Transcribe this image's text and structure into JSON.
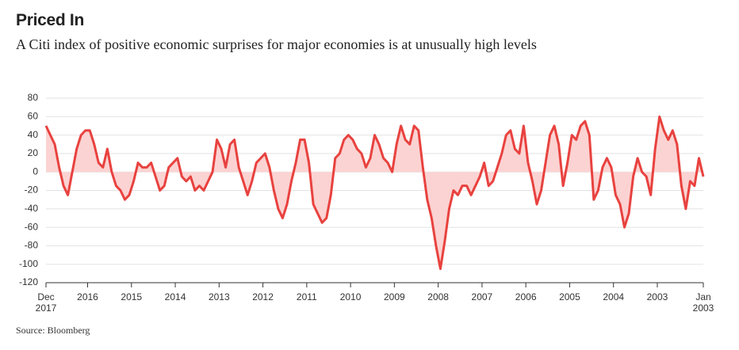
{
  "chart_data": {
    "type": "line",
    "title": "Priced In",
    "subtitle": "A Citi index of positive economic surprises for major economies is at unusually high levels",
    "source": "Source: Bloomberg",
    "color": "#e8423f",
    "area_color": "#fbd3d2",
    "x": [
      0,
      0.1,
      0.2,
      0.3,
      0.4,
      0.5,
      0.6,
      0.7,
      0.8,
      0.9,
      1,
      1.1,
      1.2,
      1.3,
      1.4,
      1.5,
      1.6,
      1.7,
      1.8,
      1.9,
      2,
      2.1,
      2.2,
      2.3,
      2.4,
      2.5,
      2.6,
      2.7,
      2.8,
      2.9,
      3,
      3.1,
      3.2,
      3.3,
      3.4,
      3.5,
      3.6,
      3.7,
      3.8,
      3.9,
      4,
      4.1,
      4.2,
      4.3,
      4.4,
      4.5,
      4.6,
      4.7,
      4.8,
      4.9,
      5,
      5.1,
      5.2,
      5.3,
      5.4,
      5.5,
      5.6,
      5.7,
      5.8,
      5.9,
      6,
      6.1,
      6.2,
      6.3,
      6.4,
      6.5,
      6.6,
      6.7,
      6.8,
      6.9,
      7,
      7.1,
      7.2,
      7.3,
      7.4,
      7.5,
      7.6,
      7.7,
      7.8,
      7.9,
      8,
      8.1,
      8.2,
      8.3,
      8.4,
      8.5,
      8.6,
      8.7,
      8.8,
      8.9,
      9,
      9.1,
      9.2,
      9.3,
      9.4,
      9.5,
      9.6,
      9.7,
      9.8,
      9.9,
      10,
      10.1,
      10.2,
      10.3,
      10.4,
      10.5,
      10.6,
      10.7,
      10.8,
      10.9,
      11,
      11.1,
      11.2,
      11.3,
      11.4,
      11.5,
      11.6,
      11.7,
      11.8,
      11.9,
      12,
      12.1,
      12.2,
      12.3,
      12.4,
      12.5,
      12.6,
      12.7,
      12.8,
      12.9,
      13,
      13.1,
      13.2,
      13.3,
      13.4,
      13.5,
      13.6,
      13.7,
      13.8,
      13.9,
      14,
      14.1,
      14.2,
      14.3,
      14.4,
      14.5,
      14.6,
      14.7,
      14.8,
      14.9,
      15
    ],
    "values": [
      50,
      40,
      30,
      5,
      -15,
      -25,
      0,
      25,
      40,
      45,
      45,
      30,
      10,
      5,
      25,
      0,
      -15,
      -20,
      -30,
      -25,
      -10,
      10,
      5,
      5,
      10,
      -5,
      -20,
      -15,
      5,
      10,
      15,
      -5,
      -10,
      -5,
      -20,
      -15,
      -20,
      -10,
      0,
      35,
      25,
      5,
      30,
      35,
      5,
      -10,
      -25,
      -10,
      10,
      15,
      20,
      5,
      -20,
      -40,
      -50,
      -35,
      -10,
      10,
      35,
      35,
      10,
      -35,
      -45,
      -55,
      -50,
      -25,
      15,
      20,
      35,
      40,
      35,
      25,
      20,
      5,
      15,
      40,
      30,
      15,
      10,
      0,
      30,
      50,
      35,
      30,
      50,
      45,
      5,
      -30,
      -50,
      -80,
      -105,
      -75,
      -40,
      -20,
      -25,
      -15,
      -15,
      -25,
      -15,
      -5,
      10,
      -15,
      -10,
      5,
      20,
      40,
      45,
      25,
      20,
      50,
      10,
      -10,
      -35,
      -20,
      10,
      40,
      50,
      30,
      -15,
      10,
      40,
      35,
      50,
      55,
      40,
      -30,
      -20,
      5,
      15,
      5,
      -25,
      -35,
      -60,
      -45,
      -5,
      15,
      0,
      -5,
      -25,
      25,
      60,
      45,
      35,
      45,
      30,
      -15,
      -40,
      -10,
      -15,
      15,
      -5
    ],
    "xlim": [
      0,
      15
    ],
    "xticks": [
      {
        "value": 0,
        "label": "Dec 2017"
      },
      {
        "value": 0.95,
        "label": "2016"
      },
      {
        "value": 1.95,
        "label": "2015"
      },
      {
        "value": 2.95,
        "label": "2014"
      },
      {
        "value": 3.95,
        "label": "2013"
      },
      {
        "value": 4.95,
        "label": "2012"
      },
      {
        "value": 5.95,
        "label": "2011"
      },
      {
        "value": 6.95,
        "label": "2010"
      },
      {
        "value": 7.95,
        "label": "2009"
      },
      {
        "value": 8.95,
        "label": "2008"
      },
      {
        "value": 9.95,
        "label": "2007"
      },
      {
        "value": 10.95,
        "label": "2006"
      },
      {
        "value": 11.95,
        "label": "2005"
      },
      {
        "value": 12.95,
        "label": "2004"
      },
      {
        "value": 13.95,
        "label": "2003"
      },
      {
        "value": 15,
        "label": "Jan 2003"
      }
    ],
    "ylim": [
      -120,
      80
    ],
    "yticks": [
      -120,
      -100,
      -80,
      -60,
      -40,
      -20,
      0,
      20,
      40,
      60,
      80
    ],
    "grid": true
  }
}
